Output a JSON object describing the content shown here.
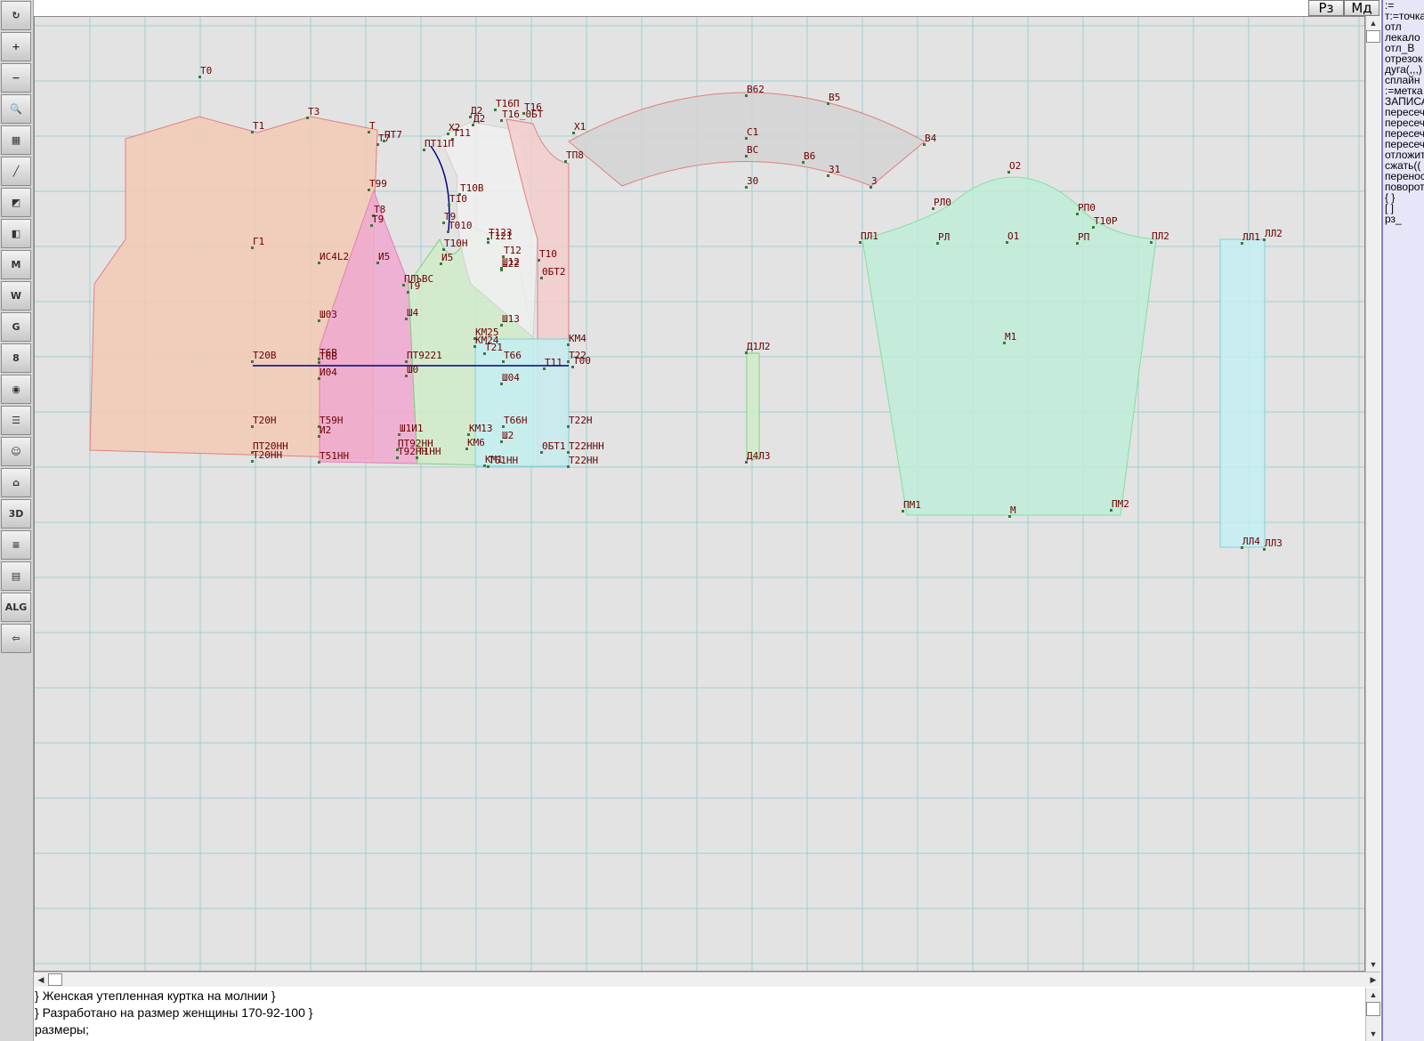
{
  "top_buttons": [
    "Рз",
    "Мд"
  ],
  "tools": [
    {
      "name": "refresh-icon",
      "glyph": "↻"
    },
    {
      "name": "zoom-in-icon",
      "glyph": "+"
    },
    {
      "name": "zoom-out-icon",
      "glyph": "−"
    },
    {
      "name": "zoom-pattern-icon",
      "glyph": "🔍"
    },
    {
      "name": "grid-icon",
      "glyph": "▦"
    },
    {
      "name": "line-tool-icon",
      "glyph": "╱"
    },
    {
      "name": "map-icon",
      "glyph": "◩"
    },
    {
      "name": "pattern-icon",
      "glyph": "◧"
    },
    {
      "name": "measure-m-icon",
      "glyph": "M"
    },
    {
      "name": "compass-icon",
      "glyph": "W"
    },
    {
      "name": "curve-g-icon",
      "glyph": "G"
    },
    {
      "name": "ruler-icon",
      "glyph": "8"
    },
    {
      "name": "camera-icon",
      "glyph": "◉"
    },
    {
      "name": "table-icon",
      "glyph": "☰"
    },
    {
      "name": "woman-avatar-icon",
      "glyph": "☺"
    },
    {
      "name": "jacket-icon",
      "glyph": "⌂"
    },
    {
      "name": "3d-view-icon",
      "glyph": "3D"
    },
    {
      "name": "document-list-icon",
      "glyph": "≡"
    },
    {
      "name": "books-icon",
      "glyph": "▤"
    },
    {
      "name": "algorithm-icon",
      "glyph": "ALG"
    },
    {
      "name": "exit-icon",
      "glyph": "⇦"
    }
  ],
  "right_panel": [
    ":=",
    "т:=точка",
    "отл",
    "лекало",
    "отл_В",
    "отрезок",
    "дуга(,,,)",
    "сплайн",
    ":=метка",
    "ЗАПИСА",
    "пересеч",
    "пересеч",
    "пересеч",
    "пересеч",
    "отложит",
    "сжать((",
    "перенос",
    "поворот",
    "{ }",
    "[ ]",
    "рз_"
  ],
  "console_lines": [
    "} Женская утепленная куртка на молнии }",
    "} Разработано на размер женщины 170-92-100 }",
    "размеры;"
  ],
  "scroll_glyphs": {
    "up": "▲",
    "down": "▼",
    "left": "◀",
    "right": "▶"
  },
  "drawing": {
    "grid_color": "#9fcfd0",
    "point_labels": [
      {
        "t": "Т0",
        "c": "#6b0000"
      },
      {
        "t": "Т1",
        "c": "#6b0000"
      },
      {
        "t": "Т3",
        "c": "#6b0000"
      },
      {
        "t": "Т",
        "c": "#6b0000"
      },
      {
        "t": "ПТ7",
        "c": "#6b0000"
      },
      {
        "t": "Т7",
        "c": "#6b0000"
      },
      {
        "t": "Т99",
        "c": "#6b0000"
      },
      {
        "t": "Т8",
        "c": "#6b0000"
      },
      {
        "t": "Т9",
        "c": "#6b0000"
      },
      {
        "t": "Г1",
        "c": "#6b0000"
      },
      {
        "t": "ИС4L2",
        "c": "#6b0000"
      },
      {
        "t": "И5",
        "c": "#6b0000"
      },
      {
        "t": "ПЛЪВС",
        "c": "#6b0000"
      },
      {
        "t": "Т9",
        "c": "#6b0000"
      },
      {
        "t": "Ш03",
        "c": "#6b0000"
      },
      {
        "t": "Ш4",
        "c": "#6b0000"
      },
      {
        "t": "Т20В",
        "c": "#6b0000"
      },
      {
        "t": "Т6В",
        "c": "#6b0000"
      },
      {
        "t": "Т6В",
        "c": "#6b0000"
      },
      {
        "t": "ПТ9221",
        "c": "#6b0000"
      },
      {
        "t": "И04",
        "c": "#6b0000"
      },
      {
        "t": "Ш0",
        "c": "#6b0000"
      },
      {
        "t": "Т20Н",
        "c": "#6b0000"
      },
      {
        "t": "Т59Н",
        "c": "#6b0000"
      },
      {
        "t": "И2",
        "c": "#6b0000"
      },
      {
        "t": "Ш1И1",
        "c": "#6b0000"
      },
      {
        "t": "ПТ20НН",
        "c": "#6b0000"
      },
      {
        "t": "Т20НН",
        "c": "#6b0000"
      },
      {
        "t": "Т51НН",
        "c": "#6b0000"
      },
      {
        "t": "ПТ92НН",
        "c": "#6b0000"
      },
      {
        "t": "Т92НН",
        "c": "#6b0000"
      },
      {
        "t": "Т1НН",
        "c": "#6b0000"
      },
      {
        "t": "Д2",
        "c": "#6b0000"
      },
      {
        "t": "Х2",
        "c": "#6b0000"
      },
      {
        "t": "Т11",
        "c": "#6b0000"
      },
      {
        "t": "Д2",
        "c": "#6b0000"
      },
      {
        "t": "Т16П",
        "c": "#6b0000"
      },
      {
        "t": "Т16",
        "c": "#6b0000"
      },
      {
        "t": "Т16_0БТ",
        "c": "#6b0000"
      },
      {
        "t": "Х1",
        "c": "#6b0000"
      },
      {
        "t": "ПТ11П",
        "c": "#6b0000"
      },
      {
        "t": "Т10В",
        "c": "#6b0000"
      },
      {
        "t": "Т10",
        "c": "#6b0000"
      },
      {
        "t": "Т9",
        "c": "#6b0000"
      },
      {
        "t": "Т010",
        "c": "#6b0000"
      },
      {
        "t": "Т123",
        "c": "#6b0000"
      },
      {
        "t": "Т121",
        "c": "#6b0000"
      },
      {
        "t": "Т10Н",
        "c": "#6b0000"
      },
      {
        "t": "Т12",
        "c": "#6b0000"
      },
      {
        "t": "Т10",
        "c": "#6b0000"
      },
      {
        "t": "И5",
        "c": "#6b0000"
      },
      {
        "t": "Ш12",
        "c": "#6b0000"
      },
      {
        "t": "Ш22",
        "c": "#6b0000"
      },
      {
        "t": "0БТ2",
        "c": "#6b0000"
      },
      {
        "t": "Ш13",
        "c": "#6b0000"
      },
      {
        "t": "КМ25",
        "c": "#6b0000"
      },
      {
        "t": "КМ24",
        "c": "#6b0000"
      },
      {
        "t": "КМ4",
        "c": "#6b0000"
      },
      {
        "t": "Т21",
        "c": "#6b0000"
      },
      {
        "t": "Т66",
        "c": "#6b0000"
      },
      {
        "t": "Т11",
        "c": "#6b0000"
      },
      {
        "t": "Т22",
        "c": "#6b0000"
      },
      {
        "t": "Т00",
        "c": "#6b0000"
      },
      {
        "t": "Ш04",
        "c": "#6b0000"
      },
      {
        "t": "Т66Н",
        "c": "#6b0000"
      },
      {
        "t": "Т22Н",
        "c": "#6b0000"
      },
      {
        "t": "КМ13",
        "c": "#6b0000"
      },
      {
        "t": "Ш2",
        "c": "#6b0000"
      },
      {
        "t": "КМ6",
        "c": "#6b0000"
      },
      {
        "t": "КМ1",
        "c": "#6b0000"
      },
      {
        "t": "0БТ1",
        "c": "#6b0000"
      },
      {
        "t": "Т22ННН",
        "c": "#6b0000"
      },
      {
        "t": "Т61НН",
        "c": "#6b0000"
      },
      {
        "t": "Т22НН",
        "c": "#6b0000"
      },
      {
        "t": "ТП8",
        "c": "#6b0000"
      },
      {
        "t": "В62",
        "c": "#6b0000"
      },
      {
        "t": "В5",
        "c": "#6b0000"
      },
      {
        "t": "С1",
        "c": "#6b0000"
      },
      {
        "t": "ВС",
        "c": "#6b0000"
      },
      {
        "t": "В6",
        "c": "#6b0000"
      },
      {
        "t": "31",
        "c": "#6b0000"
      },
      {
        "t": "3",
        "c": "#6b0000"
      },
      {
        "t": "30",
        "c": "#6b0000"
      },
      {
        "t": "В4",
        "c": "#6b0000"
      },
      {
        "t": "Д1Л2",
        "c": "#6b0000"
      },
      {
        "t": "Д4Л3",
        "c": "#6b0000"
      },
      {
        "t": "О2",
        "c": "#6b0000"
      },
      {
        "t": "РЛ0",
        "c": "#6b0000"
      },
      {
        "t": "РП0",
        "c": "#6b0000"
      },
      {
        "t": "Т10Р",
        "c": "#6b0000"
      },
      {
        "t": "ПЛ1",
        "c": "#6b0000"
      },
      {
        "t": "РЛ",
        "c": "#6b0000"
      },
      {
        "t": "О1",
        "c": "#6b0000"
      },
      {
        "t": "РП",
        "c": "#6b0000"
      },
      {
        "t": "ПЛ2",
        "c": "#6b0000"
      },
      {
        "t": "М1",
        "c": "#6b0000"
      },
      {
        "t": "ПМ1",
        "c": "#6b0000"
      },
      {
        "t": "М",
        "c": "#6b0000"
      },
      {
        "t": "ПМ2",
        "c": "#6b0000"
      },
      {
        "t": "ЛЛ1",
        "c": "#6b0000"
      },
      {
        "t": "ЛЛ2",
        "c": "#6b0000"
      },
      {
        "t": "ЛЛ4",
        "c": "#6b0000"
      },
      {
        "t": "ЛЛ3",
        "c": "#6b0000"
      }
    ]
  }
}
